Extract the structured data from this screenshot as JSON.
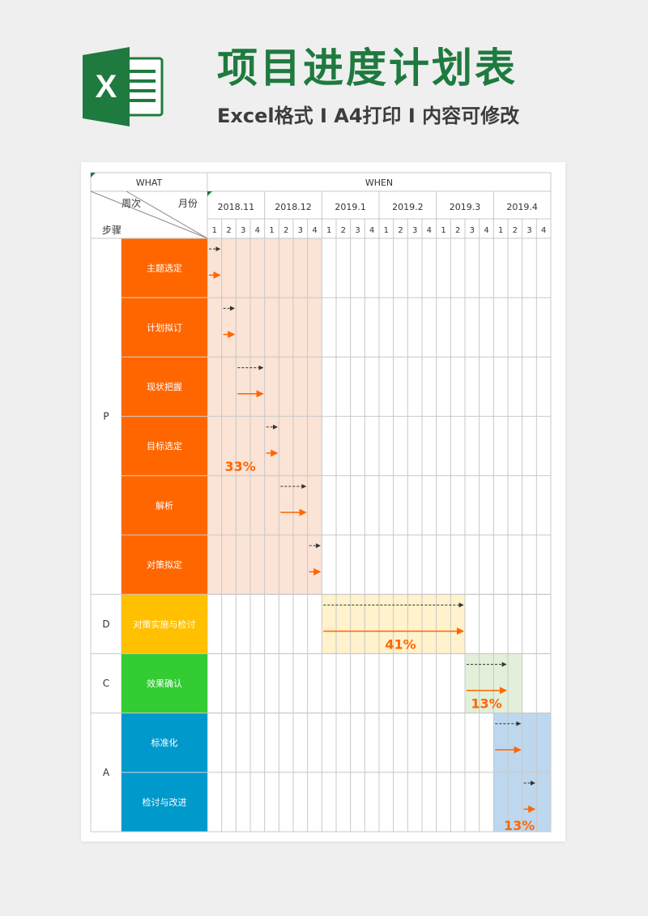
{
  "header": {
    "title": "项目进度计划表",
    "subtitle": "Excel格式 I A4打印 I 内容可修改",
    "logo_letter": "X"
  },
  "table": {
    "what_label": "WHAT",
    "when_label": "WHEN",
    "week_label": "周次",
    "month_label": "月份",
    "step_label": "步骤",
    "months": [
      {
        "label": "2018.11",
        "weeks": [
          "1",
          "2",
          "3",
          "4"
        ]
      },
      {
        "label": "2018.12",
        "weeks": [
          "1",
          "2",
          "3",
          "4"
        ]
      },
      {
        "label": "2019.1",
        "weeks": [
          "1",
          "2",
          "3",
          "4"
        ]
      },
      {
        "label": "2019.2",
        "weeks": [
          "1",
          "2",
          "3",
          "4"
        ]
      },
      {
        "label": "2019.3",
        "weeks": [
          "1",
          "2",
          "3",
          "4"
        ]
      },
      {
        "label": "2019.4",
        "weeks": [
          "1",
          "2",
          "3",
          "4"
        ]
      }
    ],
    "phases": [
      {
        "code": "P",
        "color": "#ff6600",
        "span_weeks": 8,
        "span_start": 0,
        "span_color": "#fbe3d6",
        "percent": "33%",
        "tasks": [
          {
            "label": "主题选定",
            "plan": [
              0,
              1
            ],
            "actual": [
              0,
              1
            ]
          },
          {
            "label": "计划拟订",
            "plan": [
              1,
              2
            ],
            "actual": [
              1,
              2
            ]
          },
          {
            "label": "现状把握",
            "plan": [
              2,
              4
            ],
            "actual": [
              2,
              4
            ]
          },
          {
            "label": "目标选定",
            "plan": [
              4,
              5
            ],
            "actual": [
              4,
              5
            ]
          },
          {
            "label": "解析",
            "plan": [
              5,
              7
            ],
            "actual": [
              5,
              7
            ]
          },
          {
            "label": "对策拟定",
            "plan": [
              7,
              8
            ],
            "actual": [
              7,
              8
            ]
          }
        ]
      },
      {
        "code": "D",
        "color": "#ffc000",
        "span_weeks": 10,
        "span_start": 8,
        "span_color": "#fff2cc",
        "percent": "41%",
        "tasks": [
          {
            "label": "对策实施与检讨",
            "plan": [
              8,
              18
            ],
            "actual": [
              8,
              18
            ]
          }
        ]
      },
      {
        "code": "C",
        "color": "#33cc33",
        "span_weeks": 4,
        "span_start": 18,
        "span_color": "#e2efd9",
        "percent": "13%",
        "tasks": [
          {
            "label": "效果确认",
            "plan": [
              18,
              21
            ],
            "actual": [
              18,
              21
            ]
          }
        ]
      },
      {
        "code": "A",
        "color": "#0099cc",
        "span_weeks": 4,
        "span_start": 20,
        "span_color": "#bdd7ee",
        "percent": "13%",
        "tasks": [
          {
            "label": "标准化",
            "plan": [
              20,
              22
            ],
            "actual": [
              20,
              22
            ]
          },
          {
            "label": "检讨与改进",
            "plan": [
              22,
              23
            ],
            "actual": [
              22,
              23
            ]
          }
        ]
      }
    ]
  },
  "colors": {
    "accent_green": "#1f7a3f",
    "arrow_orange": "#ff6600",
    "arrow_dashed": "#333333",
    "percent_text": "#ff6600"
  }
}
